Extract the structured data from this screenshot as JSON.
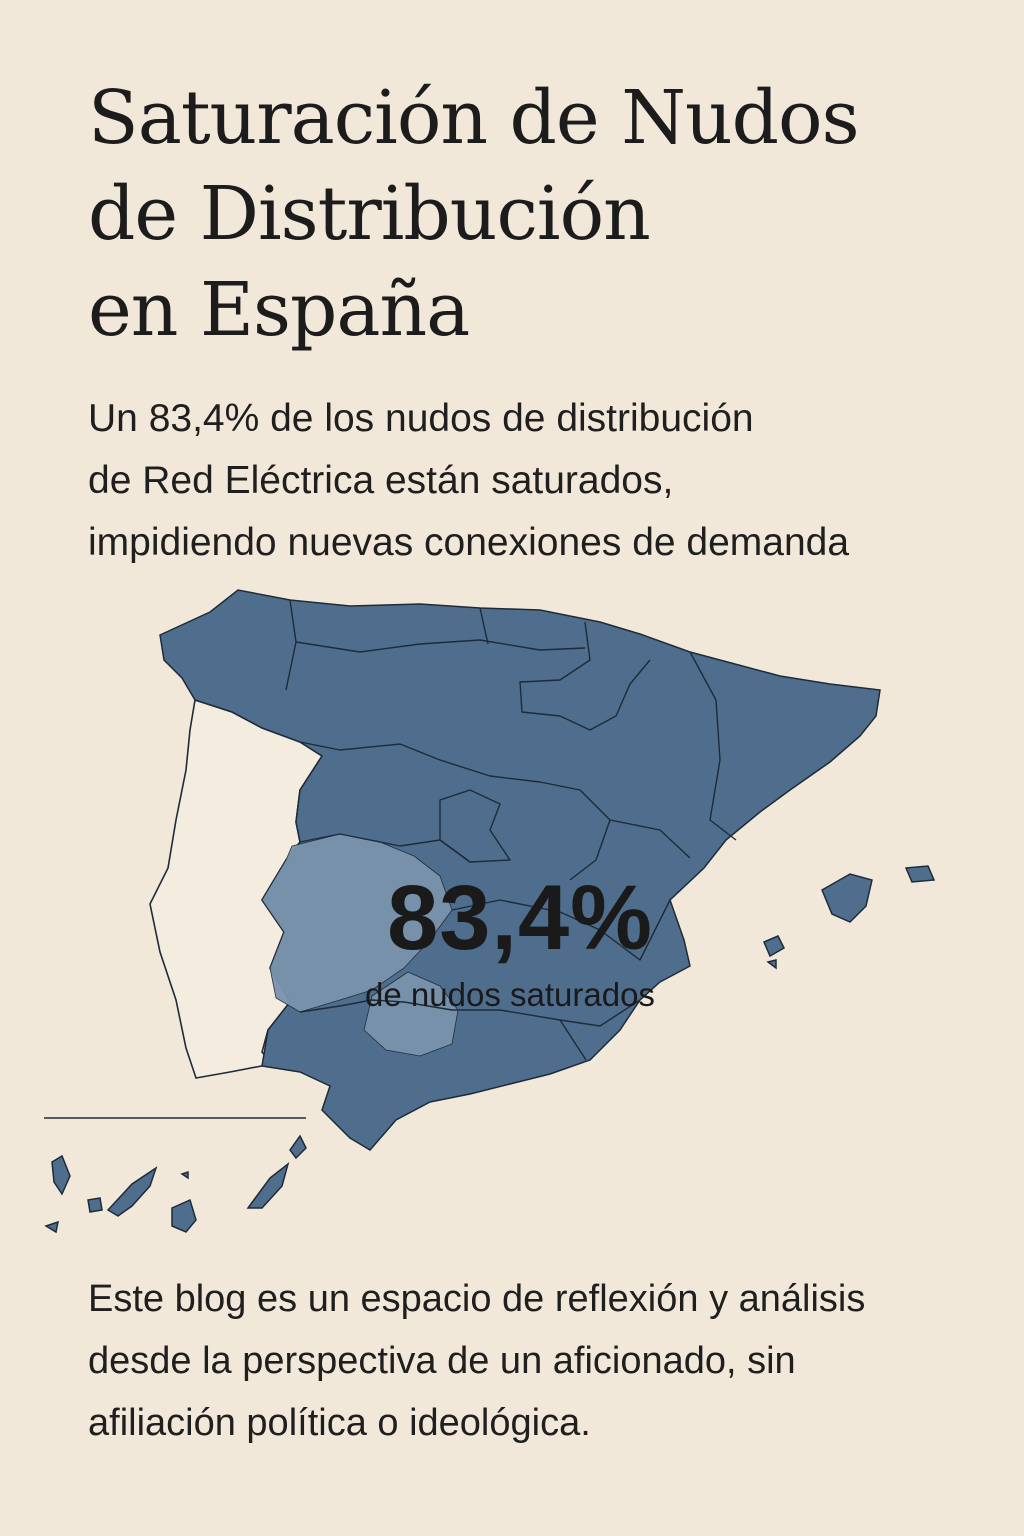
{
  "header": {
    "title_lines": [
      "Saturación de Nudos",
      "de Distribución",
      "en España"
    ],
    "subtitle_lines": [
      "Un 83,4% de los nudos de distribución",
      "de Red Eléctrica están saturados,",
      "impidiendo nuevas conexiones de demanda"
    ]
  },
  "map": {
    "stat": {
      "value": "83,4%",
      "label": "de nudos saturados",
      "saturated_fraction": 0.834
    },
    "colors": {
      "spain": "#4f6d8c",
      "highlight": "#7a93ad",
      "portugal": "#f4ecdf",
      "border": "#1e2b38",
      "background": "#f2e8da"
    }
  },
  "footer": {
    "lines": [
      "Este blog es un espacio de reflexión y análisis",
      "desde la perspectiva de un aficionado, sin",
      "afiliación política o ideológica."
    ]
  }
}
